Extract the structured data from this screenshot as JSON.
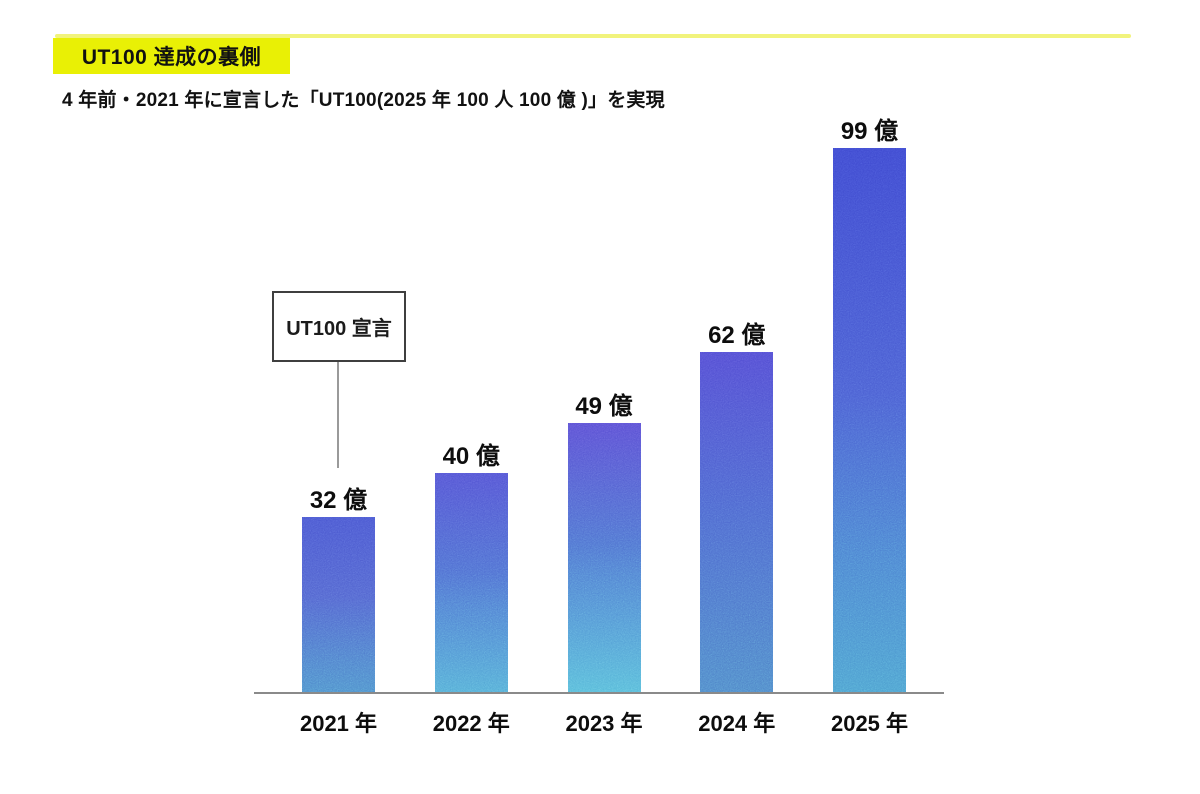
{
  "header": {
    "badge_label": "UT100 達成の裏側",
    "badge_color": "#e9f005",
    "underline_color": "#f1f37c",
    "subtitle": "4 年前・2021 年に宣言した「UT100(2025 年 100 人 100 億 )」を実現"
  },
  "callout": {
    "label": "UT100 宣言"
  },
  "chart_data": {
    "type": "bar",
    "title": "UT100 達成の裏側",
    "subtitle": "4 年前・2021 年に宣言した「UT100(2025 年 100 人 100 億 )」を実現",
    "categories": [
      "2021 年",
      "2022 年",
      "2023 年",
      "2024 年",
      "2025 年"
    ],
    "values": [
      32,
      40,
      49,
      62,
      99
    ],
    "value_labels": [
      "32 億",
      "40 億",
      "49 億",
      "62 億",
      "99 億"
    ],
    "unit": "億",
    "xlabel": "",
    "ylabel": "",
    "ylim": [
      0,
      108
    ],
    "grid": false,
    "legend": false,
    "axis_color": "#8a8a8a",
    "bar_gradients": [
      [
        "#4a57d0",
        "#5264cf",
        "#4f8ecb"
      ],
      [
        "#5354d3",
        "#4f6ed1",
        "#55acd6"
      ],
      [
        "#5a50d3",
        "#4f72d0",
        "#58bad9"
      ],
      [
        "#524dd2",
        "#4d66cf",
        "#4f86c8"
      ],
      [
        "#3e49cf",
        "#4a5ed2",
        "#4d9fcf"
      ]
    ],
    "annotation": {
      "text": "UT100 宣言",
      "target_category": "2021 年"
    }
  }
}
